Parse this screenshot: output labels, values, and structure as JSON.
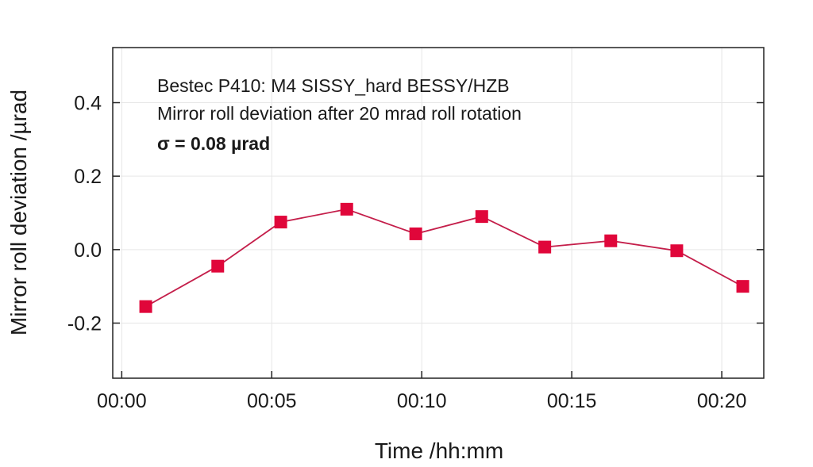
{
  "chart_data": {
    "type": "line",
    "xlabel": "Time /hh:mm",
    "ylabel": "Mirror roll deviation /µrad",
    "xlim": [
      -0.3,
      21.4
    ],
    "ylim": [
      -0.35,
      0.55
    ],
    "x_ticks": [
      {
        "value": 0,
        "label": "00:00"
      },
      {
        "value": 5,
        "label": "00:05"
      },
      {
        "value": 10,
        "label": "00:10"
      },
      {
        "value": 15,
        "label": "00:15"
      },
      {
        "value": 20,
        "label": "00:20"
      }
    ],
    "y_ticks": [
      {
        "value": 0.4,
        "label": "0.4"
      },
      {
        "value": 0.2,
        "label": "0.2"
      },
      {
        "value": 0.0,
        "label": "0.0"
      },
      {
        "value": -0.2,
        "label": "-0.2"
      }
    ],
    "grid": true,
    "annotations": [
      "Bestec P410: M4 SISSY_hard BESSY/HZB",
      "Mirror roll deviation after 20 mrad roll rotation",
      "σ = 0.08 µrad"
    ],
    "series": [
      {
        "marker_color": "#e0063a",
        "line_color": "#c41e4a",
        "x": [
          0.8,
          3.2,
          5.3,
          7.5,
          9.8,
          12.0,
          14.1,
          16.3,
          18.5,
          20.7
        ],
        "y": [
          -0.155,
          -0.045,
          0.075,
          0.11,
          0.043,
          0.09,
          0.007,
          0.024,
          -0.003,
          -0.1
        ]
      }
    ]
  }
}
